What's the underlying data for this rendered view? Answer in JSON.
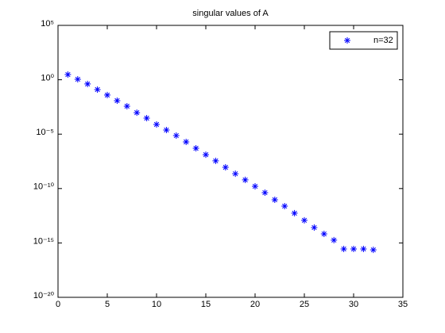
{
  "chart_data": {
    "type": "scatter",
    "title": "singular values of A",
    "x": [
      1,
      2,
      3,
      4,
      5,
      6,
      7,
      8,
      9,
      10,
      11,
      12,
      13,
      14,
      15,
      16,
      17,
      18,
      19,
      20,
      21,
      22,
      23,
      24,
      25,
      26,
      27,
      28,
      29,
      30,
      31,
      32
    ],
    "series": [
      {
        "name": "n=32",
        "color": "#0000ff",
        "marker": "asterisk",
        "values": [
          3.0,
          1.1,
          0.41,
          0.126,
          0.039,
          0.012,
          0.0037,
          0.00095,
          0.000295,
          7.8e-05,
          2.4e-05,
          7.4e-06,
          1.95e-06,
          5e-07,
          1.3e-07,
          3.5e-08,
          8.9e-09,
          2.3e-09,
          6.2e-10,
          1.6e-10,
          4.2e-11,
          9.3e-12,
          2.4e-12,
          5.4e-13,
          1.2e-13,
          2.6e-14,
          6.8e-15,
          1.8e-15,
          2.8e-16,
          2.8e-16,
          2.8e-16,
          2.3e-16
        ]
      }
    ],
    "xlim": [
      0,
      35
    ],
    "xticks": [
      0,
      5,
      10,
      15,
      20,
      25,
      30,
      35
    ],
    "ylim": [
      1e-20,
      100000
    ],
    "ylog": true,
    "yticks": [
      {
        "value": 100000,
        "label": "10⁵"
      },
      {
        "value": 1,
        "label": "10⁰"
      },
      {
        "value": 1e-05,
        "label": "10⁻⁵"
      },
      {
        "value": 1e-10,
        "label": "10⁻¹⁰"
      },
      {
        "value": 1e-15,
        "label": "10⁻¹⁵"
      },
      {
        "value": 1e-20,
        "label": "10⁻²⁰"
      }
    ],
    "grid": false,
    "legend": "top-right"
  }
}
